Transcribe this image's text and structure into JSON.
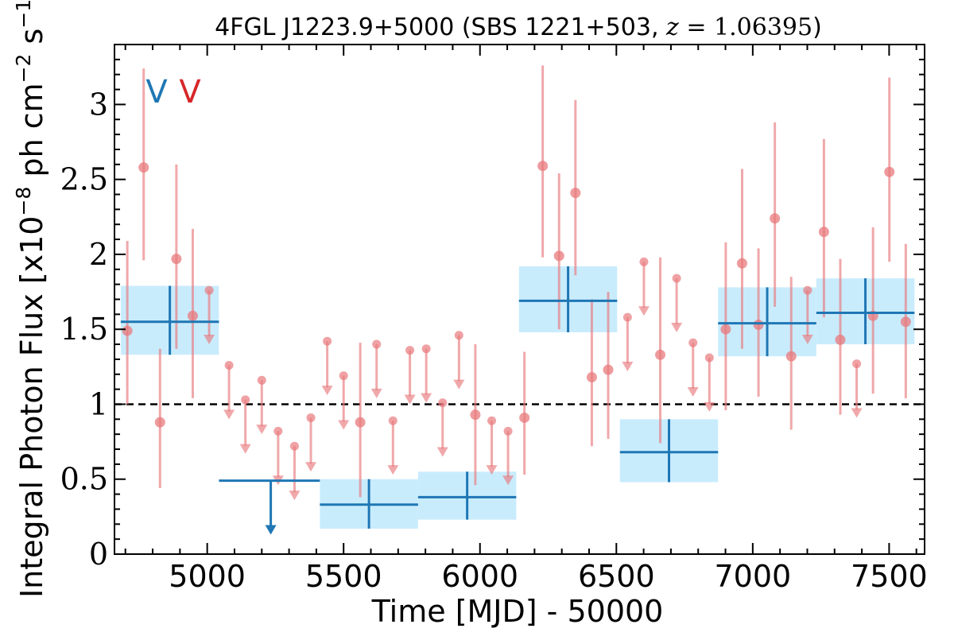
{
  "chart_data": {
    "type": "scatter",
    "title": {
      "prefix": "4FGL J1223.9+5000 (SBS 1221+503, ",
      "z_symbol": "z",
      "z_value": " = 1.06395",
      "suffix": ")"
    },
    "xlabel": "Time [MJD] - 50000",
    "ylabel": {
      "prefix": "Integral Photon Flux [x10",
      "exp1": "−8",
      "middle": " ph cm",
      "exp2": "−2",
      "middle2": " s",
      "exp3": "−1",
      "suffix": "]"
    },
    "xlim": [
      4660,
      7630
    ],
    "ylim": [
      0,
      3.4
    ],
    "xticks": [
      5000,
      5500,
      6000,
      6500,
      7000,
      7500
    ],
    "xtick_labels": [
      "5000",
      "5500",
      "6000",
      "6500",
      "7000",
      "7500"
    ],
    "yticks": [
      0,
      0.5,
      1,
      1.5,
      2,
      2.5,
      3
    ],
    "ytick_labels": [
      "0",
      "0.5",
      "1",
      "1.5",
      "2",
      "2.5",
      "3"
    ],
    "markers": [
      {
        "text": "V",
        "color": "#1f77b4"
      },
      {
        "text": "V",
        "color": "#d62728"
      }
    ],
    "reference_line": {
      "y": 1.0,
      "style": "dashed",
      "color": "#000000"
    },
    "colors": {
      "fine": "#e8797c",
      "coarse": "#1f77b4",
      "band": "#c9ecfd"
    },
    "series": [
      {
        "kind": "fine-detections",
        "points": [
          {
            "x": 4707,
            "y": 1.49,
            "lo": 1.0,
            "hi": 2.09
          },
          {
            "x": 4767,
            "y": 2.58,
            "lo": 1.96,
            "hi": 3.24
          },
          {
            "x": 4827,
            "y": 0.88,
            "lo": 0.44,
            "hi": 1.37
          },
          {
            "x": 4887,
            "y": 1.97,
            "lo": 1.37,
            "hi": 2.6
          },
          {
            "x": 4947,
            "y": 1.59,
            "lo": 1.04,
            "hi": 2.17
          },
          {
            "x": 5561,
            "y": 0.88,
            "lo": 0.38,
            "hi": 1.41
          },
          {
            "x": 5983,
            "y": 0.93,
            "lo": 0.46,
            "hi": 1.4
          },
          {
            "x": 6163,
            "y": 0.91,
            "lo": 0.53,
            "hi": 1.35
          },
          {
            "x": 6230,
            "y": 2.59,
            "lo": 1.98,
            "hi": 3.26
          },
          {
            "x": 6290,
            "y": 1.99,
            "lo": 1.5,
            "hi": 2.54
          },
          {
            "x": 6350,
            "y": 2.41,
            "lo": 1.86,
            "hi": 3.03
          },
          {
            "x": 6410,
            "y": 1.18,
            "lo": 0.72,
            "hi": 1.7
          },
          {
            "x": 6470,
            "y": 1.23,
            "lo": 0.77,
            "hi": 1.75
          },
          {
            "x": 6661,
            "y": 1.33,
            "lo": 0.74,
            "hi": 1.98
          },
          {
            "x": 6901,
            "y": 1.5,
            "lo": 0.96,
            "hi": 2.08
          },
          {
            "x": 6961,
            "y": 1.94,
            "lo": 1.37,
            "hi": 2.57
          },
          {
            "x": 7021,
            "y": 1.53,
            "lo": 1.05,
            "hi": 2.04
          },
          {
            "x": 7081,
            "y": 2.24,
            "lo": 1.65,
            "hi": 2.88
          },
          {
            "x": 7141,
            "y": 1.32,
            "lo": 0.83,
            "hi": 1.85
          },
          {
            "x": 7261,
            "y": 2.15,
            "lo": 1.58,
            "hi": 2.77
          },
          {
            "x": 7321,
            "y": 1.43,
            "lo": 0.93,
            "hi": 1.97
          },
          {
            "x": 7441,
            "y": 1.59,
            "lo": 1.07,
            "hi": 2.18
          },
          {
            "x": 7501,
            "y": 2.55,
            "lo": 1.95,
            "hi": 3.18
          },
          {
            "x": 7561,
            "y": 1.55,
            "lo": 1.04,
            "hi": 2.07
          }
        ]
      },
      {
        "kind": "fine-upper-limits",
        "points": [
          {
            "x": 5007,
            "y": 1.76,
            "tip": 1.4
          },
          {
            "x": 5080,
            "y": 1.26,
            "tip": 0.9
          },
          {
            "x": 5140,
            "y": 1.03,
            "tip": 0.67
          },
          {
            "x": 5200,
            "y": 1.16,
            "tip": 0.8
          },
          {
            "x": 5260,
            "y": 0.82,
            "tip": 0.46
          },
          {
            "x": 5320,
            "y": 0.72,
            "tip": 0.36
          },
          {
            "x": 5380,
            "y": 0.91,
            "tip": 0.55
          },
          {
            "x": 5440,
            "y": 1.42,
            "tip": 1.06
          },
          {
            "x": 5500,
            "y": 1.19,
            "tip": 0.83
          },
          {
            "x": 5621,
            "y": 1.4,
            "tip": 1.04
          },
          {
            "x": 5681,
            "y": 0.89,
            "tip": 0.53
          },
          {
            "x": 5743,
            "y": 1.36,
            "tip": 1.0
          },
          {
            "x": 5803,
            "y": 1.37,
            "tip": 1.01
          },
          {
            "x": 5863,
            "y": 1.01,
            "tip": 0.65
          },
          {
            "x": 5923,
            "y": 1.46,
            "tip": 1.1
          },
          {
            "x": 6043,
            "y": 0.89,
            "tip": 0.53
          },
          {
            "x": 6103,
            "y": 0.82,
            "tip": 0.46
          },
          {
            "x": 6541,
            "y": 1.58,
            "tip": 1.22
          },
          {
            "x": 6601,
            "y": 1.95,
            "tip": 1.59
          },
          {
            "x": 6721,
            "y": 1.84,
            "tip": 1.48
          },
          {
            "x": 6781,
            "y": 1.41,
            "tip": 1.05
          },
          {
            "x": 6841,
            "y": 1.31,
            "tip": 0.95
          },
          {
            "x": 7201,
            "y": 1.76,
            "tip": 1.4
          },
          {
            "x": 7381,
            "y": 1.27,
            "tip": 0.91
          }
        ]
      },
      {
        "kind": "coarse-detections",
        "points": [
          {
            "x": 4863,
            "x0": 4683,
            "x1": 5043,
            "y": 1.55,
            "lo": 1.33,
            "hi": 1.79
          },
          {
            "x": 5593,
            "x0": 5413,
            "x1": 5773,
            "y": 0.33,
            "lo": 0.17,
            "hi": 0.5
          },
          {
            "x": 5953,
            "x0": 5773,
            "x1": 6133,
            "y": 0.38,
            "lo": 0.23,
            "hi": 0.55
          },
          {
            "x": 6323,
            "x0": 6143,
            "x1": 6503,
            "y": 1.69,
            "lo": 1.48,
            "hi": 1.92
          },
          {
            "x": 6693,
            "x0": 6513,
            "x1": 6873,
            "y": 0.68,
            "lo": 0.48,
            "hi": 0.9
          },
          {
            "x": 7053,
            "x0": 6873,
            "x1": 7233,
            "y": 1.54,
            "lo": 1.32,
            "hi": 1.78
          },
          {
            "x": 7413,
            "x0": 7233,
            "x1": 7593,
            "y": 1.61,
            "lo": 1.4,
            "hi": 1.84
          }
        ]
      },
      {
        "kind": "coarse-upper-limits",
        "points": [
          {
            "x": 5233,
            "x0": 5043,
            "x1": 5413,
            "y": 0.49,
            "tip": 0.13
          }
        ]
      }
    ]
  }
}
